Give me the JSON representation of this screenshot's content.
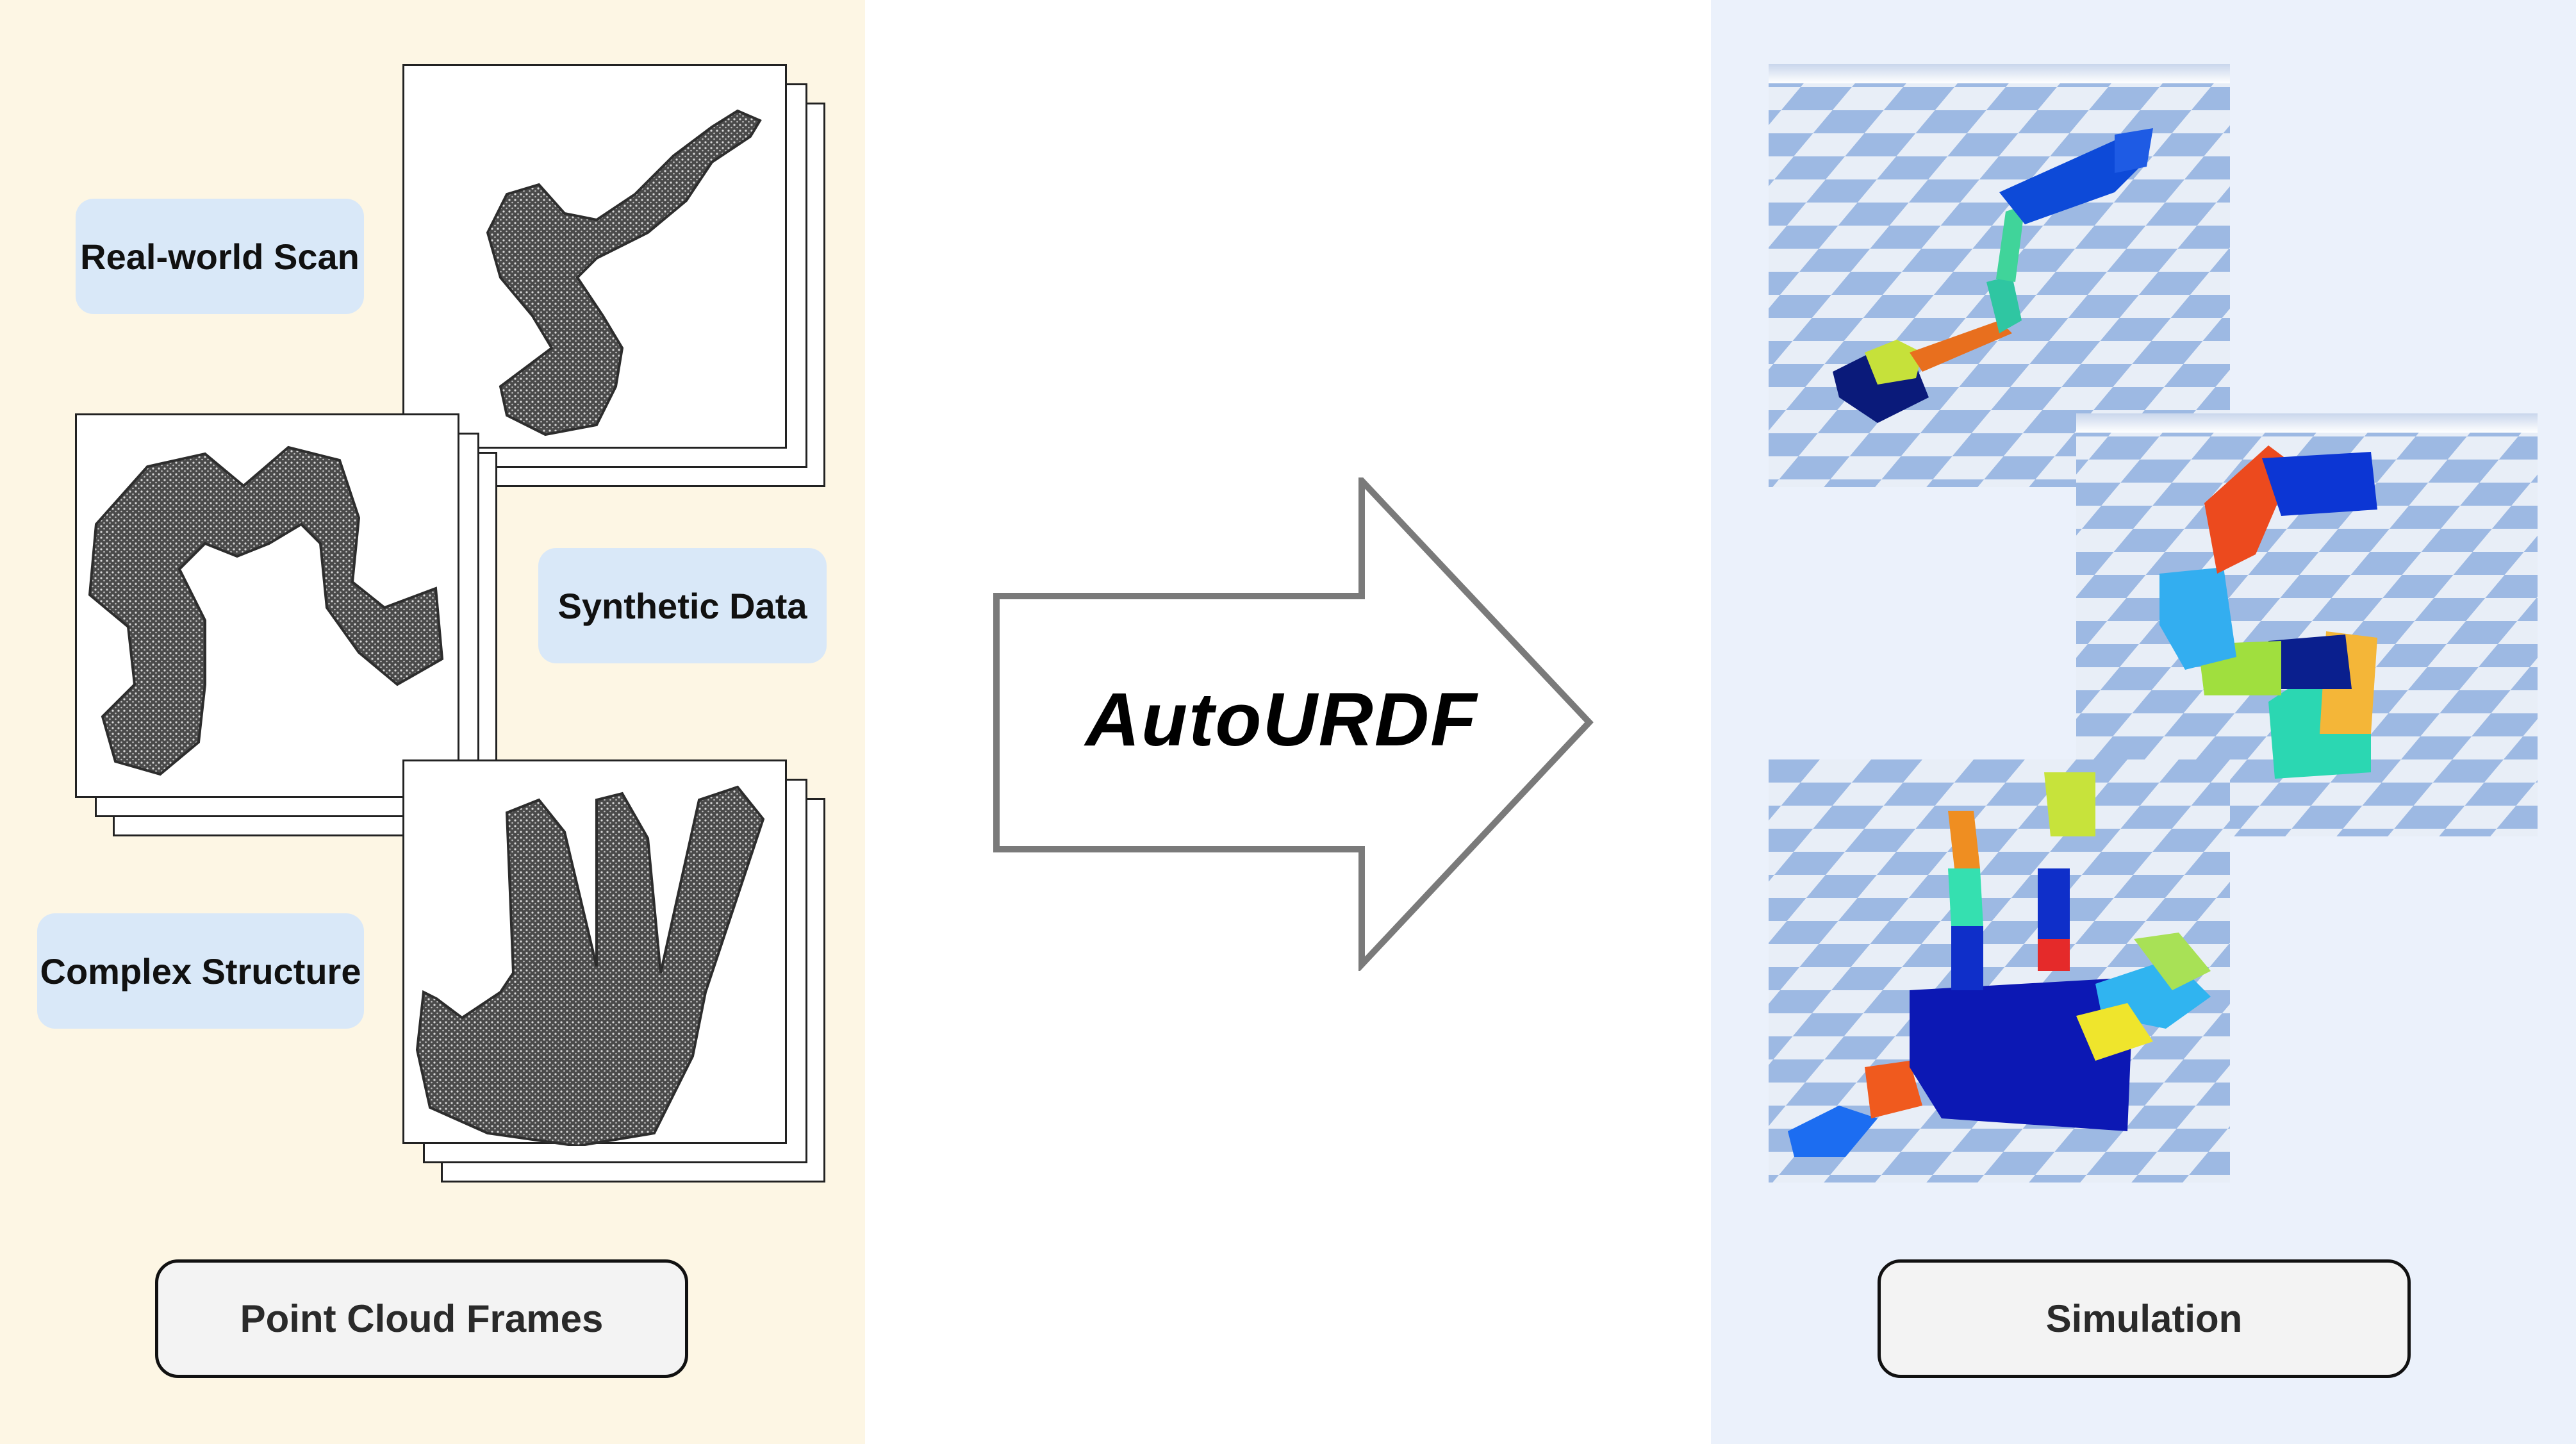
{
  "left_panel": {
    "tags": {
      "real_world": "Real-world Scan",
      "synthetic": "Synthetic Data",
      "complex": "Complex Structure"
    },
    "caption": "Point Cloud Frames"
  },
  "center": {
    "method_name": "AutoURDF"
  },
  "right_panel": {
    "caption": "Simulation"
  },
  "colors": {
    "left_background": "#fdf6e4",
    "right_background": "#ebf1fb",
    "tag_background": "#d9e8f8",
    "caption_background": "#f3f3f3",
    "point_cloud": "#3c3c3c",
    "checker_dark": "#9db9e3",
    "checker_light": "#e8eef7"
  }
}
